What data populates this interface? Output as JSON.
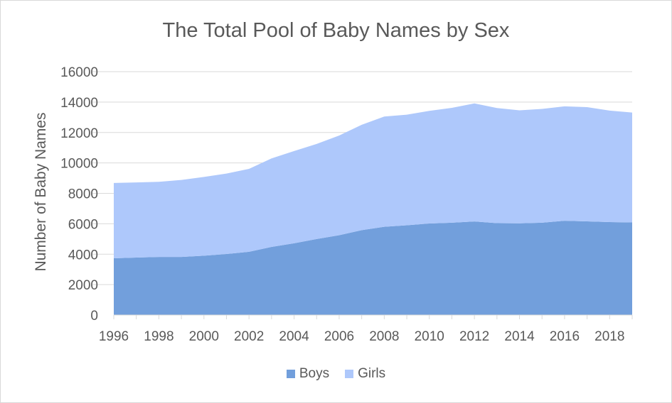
{
  "chart_data": {
    "type": "area",
    "stacked": true,
    "title": "The Total Pool of Baby Names by Sex",
    "xlabel": "",
    "ylabel": "Number of Baby Names",
    "x": [
      1996,
      1997,
      1998,
      1999,
      2000,
      2001,
      2002,
      2003,
      2004,
      2005,
      2006,
      2007,
      2008,
      2009,
      2010,
      2011,
      2012,
      2013,
      2014,
      2015,
      2016,
      2017,
      2018,
      2019
    ],
    "x_tick_labels": [
      "1996",
      "1998",
      "2000",
      "2002",
      "2004",
      "2006",
      "2008",
      "2010",
      "2012",
      "2014",
      "2016",
      "2018"
    ],
    "ylim": [
      0,
      16000
    ],
    "y_tick_labels": [
      "0",
      "2000",
      "4000",
      "6000",
      "8000",
      "10000",
      "12000",
      "14000",
      "16000"
    ],
    "series": [
      {
        "name": "Boys",
        "color": "#729fdc",
        "values": [
          3730,
          3780,
          3820,
          3820,
          3900,
          4010,
          4160,
          4480,
          4720,
          5000,
          5250,
          5580,
          5800,
          5900,
          6020,
          6070,
          6150,
          6040,
          6030,
          6070,
          6200,
          6160,
          6110,
          6090
        ]
      },
      {
        "name": "Girls",
        "color": "#aec8fb",
        "values": [
          4950,
          4940,
          4940,
          5060,
          5180,
          5290,
          5450,
          5820,
          6060,
          6250,
          6550,
          6930,
          7250,
          7270,
          7400,
          7550,
          7760,
          7570,
          7430,
          7480,
          7520,
          7510,
          7330,
          7220
        ]
      }
    ],
    "grid": true,
    "legend_position": "bottom"
  }
}
